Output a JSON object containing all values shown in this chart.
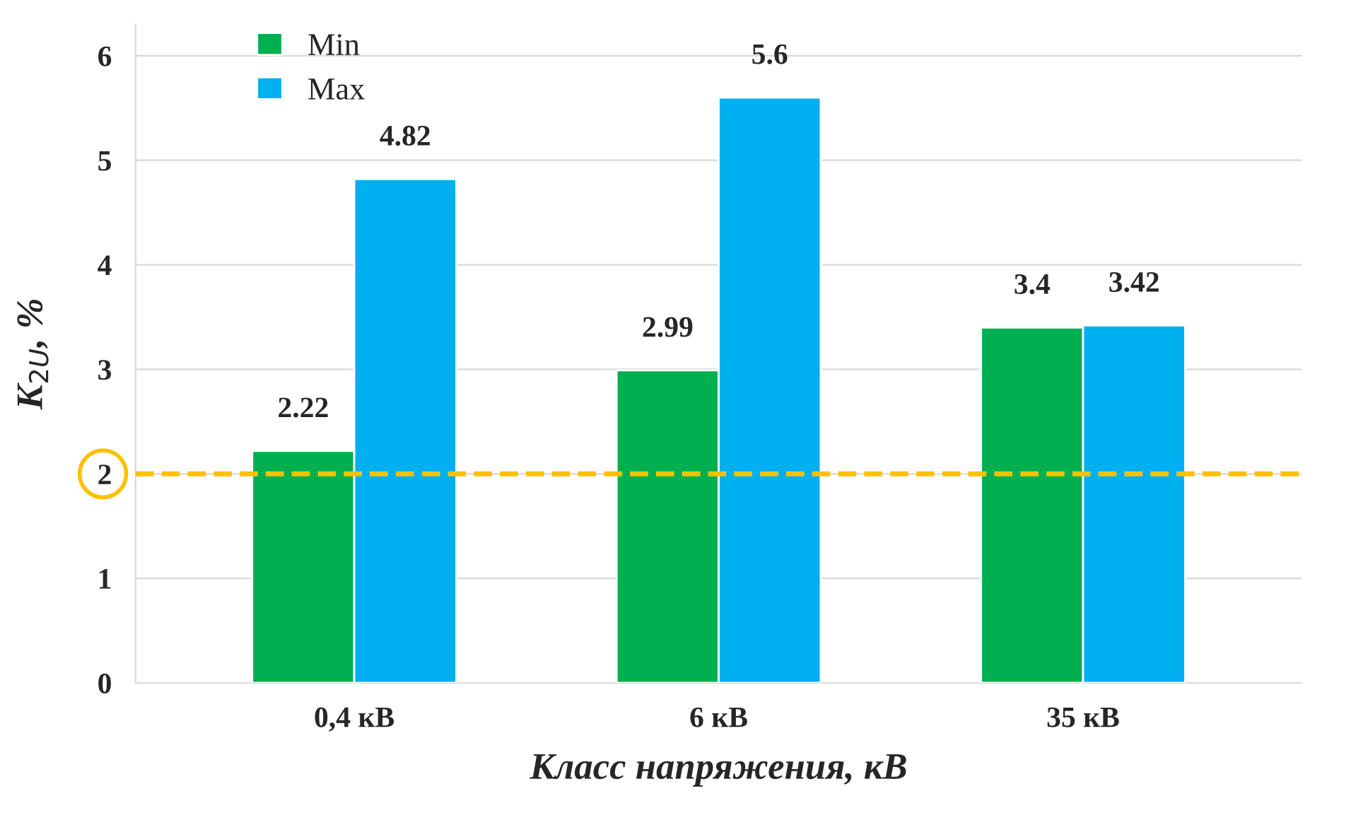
{
  "chart_data": {
    "type": "bar",
    "categories": [
      "0,4 кВ",
      "6 кВ",
      "35 кВ"
    ],
    "series": [
      {
        "name": "Min",
        "color": "#00b050",
        "values": [
          2.22,
          2.99,
          3.4
        ]
      },
      {
        "name": "Max",
        "color": "#00b0f0",
        "values": [
          4.82,
          5.6,
          3.42
        ]
      }
    ],
    "xlabel": "Класс напряжения, кВ",
    "ylabel": "K$_{2U}$, %",
    "ylim": [
      0,
      6.3
    ],
    "yticks": [
      0,
      1,
      2,
      3,
      4,
      5,
      6
    ],
    "grid": "y",
    "legend": "top left",
    "data_labels": true,
    "ref_lines": [
      {
        "axis": "y",
        "value": 2,
        "label": null,
        "color": "#ffc000",
        "line_style": "dashed"
      }
    ]
  }
}
